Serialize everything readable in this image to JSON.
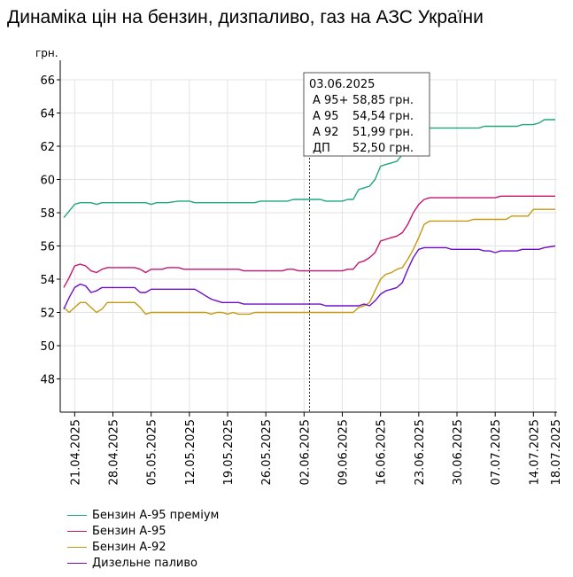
{
  "title": "Динаміка цін на бензин, дизпаливо, газ на АЗС України",
  "chart_data": {
    "type": "line",
    "title": "Динаміка цін на бензин, дизпаливо, газ на АЗС України",
    "ylabel": "грн.",
    "xlabel": "",
    "ylim": [
      46,
      66
    ],
    "yticks": [
      48,
      50,
      52,
      54,
      56,
      58,
      60,
      62,
      64,
      66
    ],
    "xlim": [
      "2025-04-19",
      "2025-07-18"
    ],
    "xtick_labels": [
      "21.04.2025",
      "28.04.2025",
      "05.05.2025",
      "12.05.2025",
      "19.05.2025",
      "26.05.2025",
      "02.06.2025",
      "09.06.2025",
      "16.06.2025",
      "23.06.2025",
      "30.06.2025",
      "07.07.2025",
      "14.07.2025",
      "18.07.2025"
    ],
    "xtick_dates": [
      "2025-04-21",
      "2025-04-28",
      "2025-05-05",
      "2025-05-12",
      "2025-05-19",
      "2025-05-26",
      "2025-06-02",
      "2025-06-09",
      "2025-06-16",
      "2025-06-23",
      "2025-06-30",
      "2025-07-07",
      "2025-07-14",
      "2025-07-18"
    ],
    "grid": true,
    "legend_position": "bottom-left",
    "series": [
      {
        "name": "Бензин А-95 преміум",
        "color": "#1fa87f",
        "points": [
          [
            "2025-04-19",
            57.7
          ],
          [
            "2025-04-20",
            58.1
          ],
          [
            "2025-04-21",
            58.5
          ],
          [
            "2025-04-22",
            58.6
          ],
          [
            "2025-04-24",
            58.6
          ],
          [
            "2025-04-25",
            58.5
          ],
          [
            "2025-04-26",
            58.6
          ],
          [
            "2025-05-04",
            58.6
          ],
          [
            "2025-05-05",
            58.5
          ],
          [
            "2025-05-06",
            58.6
          ],
          [
            "2025-05-08",
            58.6
          ],
          [
            "2025-05-10",
            58.7
          ],
          [
            "2025-05-12",
            58.7
          ],
          [
            "2025-05-13",
            58.6
          ],
          [
            "2025-05-24",
            58.6
          ],
          [
            "2025-05-25",
            58.7
          ],
          [
            "2025-05-30",
            58.7
          ],
          [
            "2025-05-31",
            58.8
          ],
          [
            "2025-06-05",
            58.8
          ],
          [
            "2025-06-06",
            58.7
          ],
          [
            "2025-06-09",
            58.7
          ],
          [
            "2025-06-10",
            58.8
          ],
          [
            "2025-06-11",
            58.8
          ],
          [
            "2025-06-12",
            59.4
          ],
          [
            "2025-06-13",
            59.5
          ],
          [
            "2025-06-14",
            59.6
          ],
          [
            "2025-06-15",
            60.0
          ],
          [
            "2025-06-16",
            60.8
          ],
          [
            "2025-06-17",
            60.9
          ],
          [
            "2025-06-18",
            61.0
          ],
          [
            "2025-06-19",
            61.1
          ],
          [
            "2025-06-20",
            61.5
          ],
          [
            "2025-06-21",
            62.0
          ],
          [
            "2025-06-22",
            62.6
          ],
          [
            "2025-06-23",
            63.0
          ],
          [
            "2025-06-24",
            63.1
          ],
          [
            "2025-07-04",
            63.1
          ],
          [
            "2025-07-05",
            63.2
          ],
          [
            "2025-07-11",
            63.2
          ],
          [
            "2025-07-12",
            63.3
          ],
          [
            "2025-07-14",
            63.3
          ],
          [
            "2025-07-15",
            63.4
          ],
          [
            "2025-07-16",
            63.6
          ],
          [
            "2025-07-18",
            63.6
          ]
        ]
      },
      {
        "name": "Бензин А-95",
        "color": "#c4166f",
        "points": [
          [
            "2025-04-19",
            53.5
          ],
          [
            "2025-04-20",
            54.1
          ],
          [
            "2025-04-21",
            54.8
          ],
          [
            "2025-04-22",
            54.9
          ],
          [
            "2025-04-23",
            54.8
          ],
          [
            "2025-04-24",
            54.5
          ],
          [
            "2025-04-25",
            54.4
          ],
          [
            "2025-04-26",
            54.6
          ],
          [
            "2025-04-27",
            54.7
          ],
          [
            "2025-05-02",
            54.7
          ],
          [
            "2025-05-03",
            54.6
          ],
          [
            "2025-05-04",
            54.4
          ],
          [
            "2025-05-05",
            54.6
          ],
          [
            "2025-05-07",
            54.6
          ],
          [
            "2025-05-08",
            54.7
          ],
          [
            "2025-05-10",
            54.7
          ],
          [
            "2025-05-11",
            54.6
          ],
          [
            "2025-05-21",
            54.6
          ],
          [
            "2025-05-22",
            54.5
          ],
          [
            "2025-05-29",
            54.5
          ],
          [
            "2025-05-30",
            54.6
          ],
          [
            "2025-05-31",
            54.6
          ],
          [
            "2025-06-01",
            54.5
          ],
          [
            "2025-06-09",
            54.5
          ],
          [
            "2025-06-10",
            54.6
          ],
          [
            "2025-06-11",
            54.6
          ],
          [
            "2025-06-12",
            55.0
          ],
          [
            "2025-06-13",
            55.1
          ],
          [
            "2025-06-14",
            55.3
          ],
          [
            "2025-06-15",
            55.6
          ],
          [
            "2025-06-16",
            56.3
          ],
          [
            "2025-06-17",
            56.4
          ],
          [
            "2025-06-18",
            56.5
          ],
          [
            "2025-06-19",
            56.6
          ],
          [
            "2025-06-20",
            56.8
          ],
          [
            "2025-06-21",
            57.3
          ],
          [
            "2025-06-22",
            58.0
          ],
          [
            "2025-06-23",
            58.5
          ],
          [
            "2025-06-24",
            58.8
          ],
          [
            "2025-06-25",
            58.9
          ],
          [
            "2025-07-07",
            58.9
          ],
          [
            "2025-07-08",
            59.0
          ],
          [
            "2025-07-18",
            59.0
          ]
        ]
      },
      {
        "name": "Бензин А-92",
        "color": "#c49a12",
        "points": [
          [
            "2025-04-19",
            52.3
          ],
          [
            "2025-04-20",
            52.0
          ],
          [
            "2025-04-21",
            52.3
          ],
          [
            "2025-04-22",
            52.6
          ],
          [
            "2025-04-23",
            52.6
          ],
          [
            "2025-04-24",
            52.3
          ],
          [
            "2025-04-25",
            52.0
          ],
          [
            "2025-04-26",
            52.2
          ],
          [
            "2025-04-27",
            52.6
          ],
          [
            "2025-05-02",
            52.6
          ],
          [
            "2025-05-03",
            52.3
          ],
          [
            "2025-05-04",
            51.9
          ],
          [
            "2025-05-05",
            52.0
          ],
          [
            "2025-05-15",
            52.0
          ],
          [
            "2025-05-16",
            51.9
          ],
          [
            "2025-05-17",
            52.0
          ],
          [
            "2025-05-18",
            52.0
          ],
          [
            "2025-05-19",
            51.9
          ],
          [
            "2025-05-20",
            52.0
          ],
          [
            "2025-05-21",
            51.9
          ],
          [
            "2025-05-23",
            51.9
          ],
          [
            "2025-05-24",
            52.0
          ],
          [
            "2025-06-11",
            52.0
          ],
          [
            "2025-06-12",
            52.3
          ],
          [
            "2025-06-13",
            52.4
          ],
          [
            "2025-06-14",
            52.6
          ],
          [
            "2025-06-15",
            53.3
          ],
          [
            "2025-06-16",
            54.0
          ],
          [
            "2025-06-17",
            54.3
          ],
          [
            "2025-06-18",
            54.4
          ],
          [
            "2025-06-19",
            54.6
          ],
          [
            "2025-06-20",
            54.7
          ],
          [
            "2025-06-21",
            55.2
          ],
          [
            "2025-06-22",
            55.8
          ],
          [
            "2025-06-23",
            56.5
          ],
          [
            "2025-06-24",
            57.3
          ],
          [
            "2025-06-25",
            57.5
          ],
          [
            "2025-07-02",
            57.5
          ],
          [
            "2025-07-03",
            57.6
          ],
          [
            "2025-07-09",
            57.6
          ],
          [
            "2025-07-10",
            57.8
          ],
          [
            "2025-07-13",
            57.8
          ],
          [
            "2025-07-14",
            58.2
          ],
          [
            "2025-07-18",
            58.2
          ]
        ]
      },
      {
        "name": "Дизельне паливо",
        "color": "#6e10c8",
        "points": [
          [
            "2025-04-19",
            52.2
          ],
          [
            "2025-04-20",
            52.9
          ],
          [
            "2025-04-21",
            53.5
          ],
          [
            "2025-04-22",
            53.7
          ],
          [
            "2025-04-23",
            53.6
          ],
          [
            "2025-04-24",
            53.2
          ],
          [
            "2025-04-25",
            53.3
          ],
          [
            "2025-04-26",
            53.5
          ],
          [
            "2025-05-02",
            53.5
          ],
          [
            "2025-05-03",
            53.2
          ],
          [
            "2025-05-04",
            53.2
          ],
          [
            "2025-05-05",
            53.4
          ],
          [
            "2025-05-13",
            53.4
          ],
          [
            "2025-05-14",
            53.2
          ],
          [
            "2025-05-15",
            53.0
          ],
          [
            "2025-05-16",
            52.8
          ],
          [
            "2025-05-17",
            52.7
          ],
          [
            "2025-05-18",
            52.6
          ],
          [
            "2025-05-21",
            52.6
          ],
          [
            "2025-05-22",
            52.5
          ],
          [
            "2025-05-29",
            52.5
          ],
          [
            "2025-05-30",
            52.5
          ],
          [
            "2025-06-01",
            52.5
          ],
          [
            "2025-06-05",
            52.5
          ],
          [
            "2025-06-06",
            52.4
          ],
          [
            "2025-06-12",
            52.4
          ],
          [
            "2025-06-13",
            52.5
          ],
          [
            "2025-06-14",
            52.4
          ],
          [
            "2025-06-15",
            52.7
          ],
          [
            "2025-06-16",
            53.1
          ],
          [
            "2025-06-17",
            53.3
          ],
          [
            "2025-06-18",
            53.4
          ],
          [
            "2025-06-19",
            53.5
          ],
          [
            "2025-06-20",
            53.8
          ],
          [
            "2025-06-21",
            54.6
          ],
          [
            "2025-06-22",
            55.3
          ],
          [
            "2025-06-23",
            55.8
          ],
          [
            "2025-06-24",
            55.9
          ],
          [
            "2025-06-28",
            55.9
          ],
          [
            "2025-06-29",
            55.8
          ],
          [
            "2025-07-04",
            55.8
          ],
          [
            "2025-07-05",
            55.7
          ],
          [
            "2025-07-06",
            55.7
          ],
          [
            "2025-07-07",
            55.6
          ],
          [
            "2025-07-08",
            55.7
          ],
          [
            "2025-07-11",
            55.7
          ],
          [
            "2025-07-12",
            55.8
          ],
          [
            "2025-07-15",
            55.8
          ],
          [
            "2025-07-16",
            55.9
          ],
          [
            "2025-07-18",
            56.0
          ]
        ]
      }
    ],
    "tooltip": {
      "date": "03.06.2025",
      "rows": [
        {
          "label": "А 95+",
          "value": "58,85 грн."
        },
        {
          "label": "А 95",
          "value": "54,54 грн."
        },
        {
          "label": "А 92",
          "value": "51,99 грн."
        },
        {
          "label": "ДП",
          "value": "52,50 грн."
        }
      ],
      "at_date": "2025-06-03"
    }
  }
}
